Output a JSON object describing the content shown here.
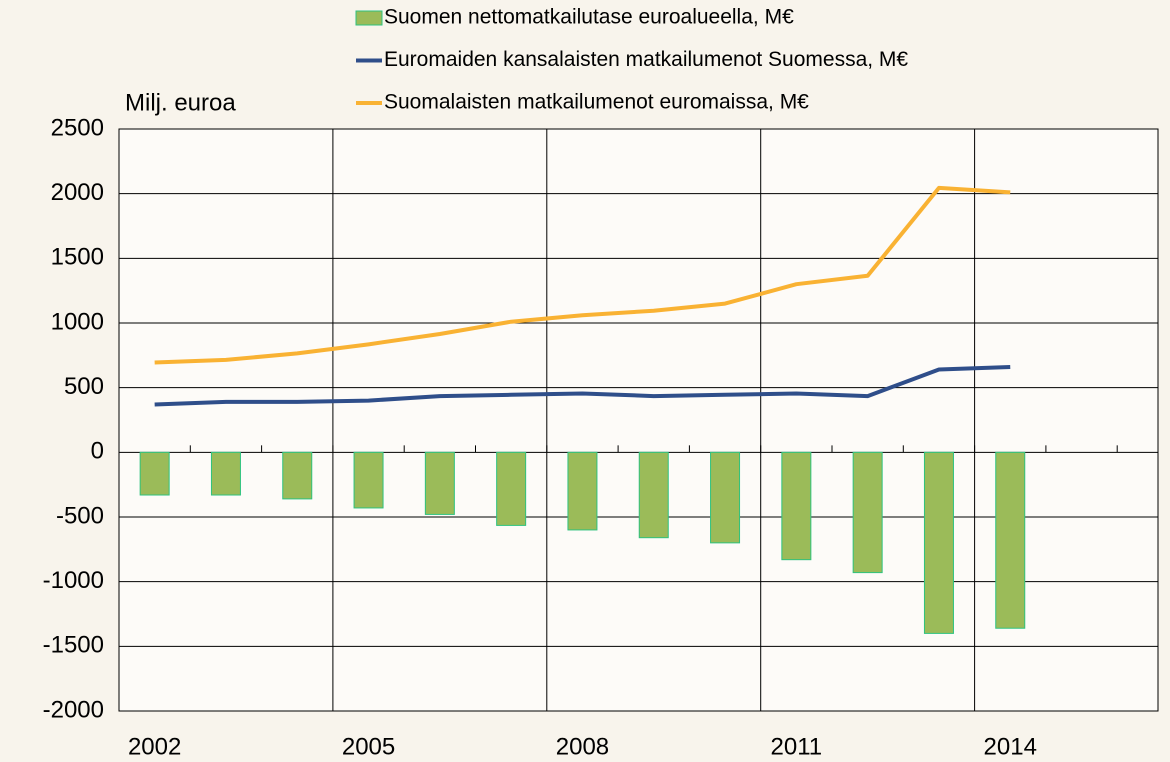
{
  "chart_data": {
    "type": "bar_line",
    "y_axis_label": "Milj. euroa",
    "categories": [
      "2002",
      null,
      null,
      "2005",
      null,
      null,
      "2008",
      null,
      null,
      "2011",
      null,
      null,
      "2014",
      null,
      null
    ],
    "series": [
      {
        "name": "Suomen nettomatkailutase euroalueella, M€",
        "type": "bar",
        "color": "#9bbb59",
        "values": [
          -330,
          -330,
          -360,
          -430,
          -480,
          -565,
          -600,
          -660,
          -700,
          -830,
          -930,
          -1400,
          -1360,
          null,
          null
        ]
      },
      {
        "name": "Euromaiden kansalaisten matkailumenot Suomessa, M€",
        "type": "line",
        "color": "#2f4e8a",
        "values": [
          370,
          390,
          390,
          400,
          435,
          445,
          455,
          435,
          445,
          455,
          435,
          640,
          660,
          null,
          null
        ]
      },
      {
        "name": "Suomalaisten matkailumenot euromaissa, M€",
        "type": "line",
        "color": "#f9b233",
        "values": [
          695,
          715,
          765,
          835,
          915,
          1010,
          1060,
          1095,
          1150,
          1300,
          1365,
          2045,
          2010,
          null,
          null
        ]
      }
    ],
    "ylim": [
      -2000,
      2500
    ],
    "yticks": [
      -2000,
      -1500,
      -1000,
      -500,
      0,
      500,
      1000,
      1500,
      2000,
      2500
    ],
    "grid": true
  }
}
